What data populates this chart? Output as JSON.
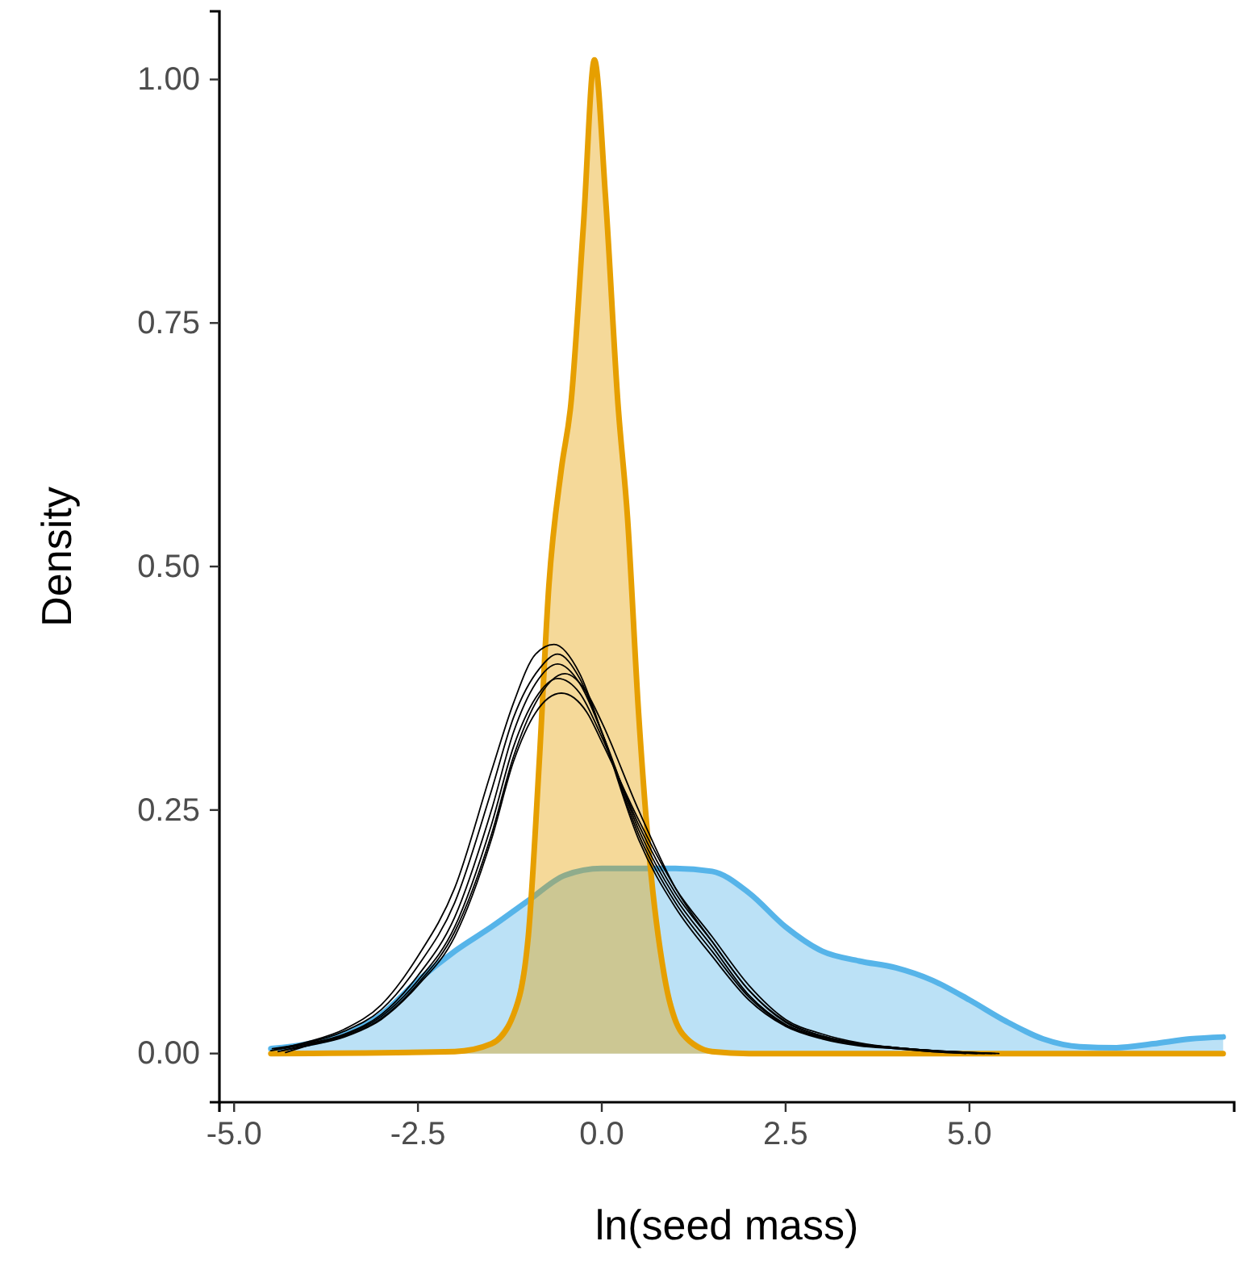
{
  "chart_data": {
    "type": "area",
    "xlabel": "ln(seed mass)",
    "ylabel": "Density",
    "xlim": [
      -5.2,
      8.6
    ],
    "ylim": [
      -0.05,
      1.07
    ],
    "xticks": [
      {
        "value": -5,
        "label": "-5.0"
      },
      {
        "value": -2.5,
        "label": "-2.5"
      },
      {
        "value": 0,
        "label": "0.0"
      },
      {
        "value": 2.5,
        "label": "2.5"
      },
      {
        "value": 5,
        "label": "5.0"
      }
    ],
    "yticks": [
      {
        "value": 0,
        "label": "0.00"
      },
      {
        "value": 0.25,
        "label": "0.25"
      },
      {
        "value": 0.5,
        "label": "0.50"
      },
      {
        "value": 0.75,
        "label": "0.75"
      },
      {
        "value": 1,
        "label": "1.00"
      }
    ],
    "grid": false,
    "series": [
      {
        "color": "#56b4e9",
        "x": [
          -4.5,
          -4,
          -3.5,
          -3,
          -2.5,
          -2,
          -1.5,
          -1,
          -0.5,
          0,
          0.5,
          1,
          1.5,
          2,
          2.5,
          3,
          3.5,
          4,
          4.5,
          5,
          5.5,
          6,
          6.5,
          7,
          7.5,
          8,
          8.45
        ],
        "values": [
          0.005,
          0.01,
          0.02,
          0.04,
          0.075,
          0.105,
          0.13,
          0.157,
          0.183,
          0.19,
          0.19,
          0.19,
          0.187,
          0.165,
          0.13,
          0.105,
          0.095,
          0.088,
          0.075,
          0.055,
          0.033,
          0.015,
          0.007,
          0.006,
          0.01,
          0.015,
          0.017
        ]
      },
      {
        "color": "#e69f00",
        "x": [
          -4.5,
          -2,
          -1.5,
          -1.2,
          -1,
          -0.85,
          -0.72,
          -0.55,
          -0.42,
          -0.25,
          -0.1,
          0.05,
          0.22,
          0.35,
          0.5,
          0.65,
          0.85,
          1.1,
          1.5,
          2,
          8.45
        ],
        "values": [
          0,
          0.002,
          0.01,
          0.04,
          0.12,
          0.3,
          0.48,
          0.6,
          0.667,
          0.85,
          1.02,
          0.88,
          0.667,
          0.55,
          0.35,
          0.2,
          0.08,
          0.02,
          0.002,
          0,
          0
        ]
      },
      {
        "type": "line",
        "color": "#000000",
        "x": [
          -4.5,
          -4,
          -3.5,
          -3,
          -2.5,
          -2,
          -1.5,
          -1.2,
          -0.9,
          -0.6,
          -0.3,
          0,
          0.5,
          1,
          1.5,
          2,
          2.5,
          3,
          3.5,
          4,
          4.5,
          5,
          5.4
        ],
        "values": [
          0.003,
          0.01,
          0.02,
          0.04,
          0.08,
          0.14,
          0.25,
          0.33,
          0.38,
          0.4,
          0.38,
          0.33,
          0.23,
          0.16,
          0.11,
          0.06,
          0.03,
          0.017,
          0.01,
          0.006,
          0.003,
          0.001,
          0
        ]
      },
      {
        "type": "line",
        "color": "#000000",
        "x": [
          -4.45,
          -4,
          -3.5,
          -3,
          -2.5,
          -2,
          -1.5,
          -1.2,
          -0.9,
          -0.65,
          -0.3,
          0,
          0.5,
          1,
          1.5,
          2,
          2.5,
          3,
          3.5,
          4,
          4.5,
          5.1
        ],
        "values": [
          0.004,
          0.012,
          0.025,
          0.05,
          0.1,
          0.17,
          0.29,
          0.36,
          0.41,
          0.42,
          0.39,
          0.33,
          0.22,
          0.15,
          0.1,
          0.055,
          0.028,
          0.015,
          0.008,
          0.005,
          0.002,
          0
        ]
      },
      {
        "type": "line",
        "color": "#000000",
        "x": [
          -4.4,
          -4,
          -3.5,
          -3,
          -2.5,
          -2,
          -1.5,
          -1.2,
          -0.9,
          -0.55,
          -0.2,
          0,
          0.5,
          1,
          1.5,
          2,
          2.5,
          3,
          3.5,
          4,
          4.5,
          5.3
        ],
        "values": [
          0.002,
          0.008,
          0.017,
          0.035,
          0.07,
          0.12,
          0.22,
          0.3,
          0.35,
          0.37,
          0.35,
          0.32,
          0.24,
          0.17,
          0.12,
          0.07,
          0.035,
          0.02,
          0.011,
          0.006,
          0.003,
          0
        ]
      },
      {
        "type": "line",
        "color": "#000000",
        "x": [
          -4.35,
          -4,
          -3.5,
          -3,
          -2.5,
          -2,
          -1.5,
          -1.2,
          -0.9,
          -0.6,
          -0.3,
          0,
          0.5,
          1,
          1.5,
          2,
          2.5,
          3,
          3.5,
          4,
          4.5,
          4.95
        ],
        "values": [
          0.003,
          0.009,
          0.019,
          0.038,
          0.075,
          0.13,
          0.235,
          0.315,
          0.365,
          0.385,
          0.37,
          0.325,
          0.235,
          0.165,
          0.115,
          0.065,
          0.032,
          0.018,
          0.01,
          0.006,
          0.003,
          0
        ]
      },
      {
        "type": "line",
        "color": "#000000",
        "x": [
          -4.48,
          -4,
          -3.5,
          -3,
          -2.5,
          -2,
          -1.5,
          -1.2,
          -0.85,
          -0.6,
          -0.3,
          0,
          0.5,
          1,
          1.5,
          2,
          2.5,
          3,
          3.5,
          4,
          4.5,
          5.2
        ],
        "values": [
          0.005,
          0.011,
          0.023,
          0.045,
          0.09,
          0.155,
          0.27,
          0.345,
          0.395,
          0.41,
          0.385,
          0.33,
          0.225,
          0.155,
          0.105,
          0.058,
          0.029,
          0.016,
          0.009,
          0.005,
          0.002,
          0
        ]
      },
      {
        "type": "line",
        "color": "#000000",
        "x": [
          -4.3,
          -4,
          -3.5,
          -3,
          -2.5,
          -2,
          -1.5,
          -1.2,
          -0.9,
          -0.5,
          -0.2,
          0,
          0.5,
          1,
          1.5,
          2,
          2.5,
          3,
          3.5,
          4,
          4.5,
          5.35
        ],
        "values": [
          0.001,
          0.008,
          0.018,
          0.036,
          0.072,
          0.125,
          0.225,
          0.305,
          0.36,
          0.39,
          0.37,
          0.34,
          0.25,
          0.17,
          0.115,
          0.065,
          0.033,
          0.018,
          0.01,
          0.006,
          0.003,
          0
        ]
      }
    ]
  }
}
